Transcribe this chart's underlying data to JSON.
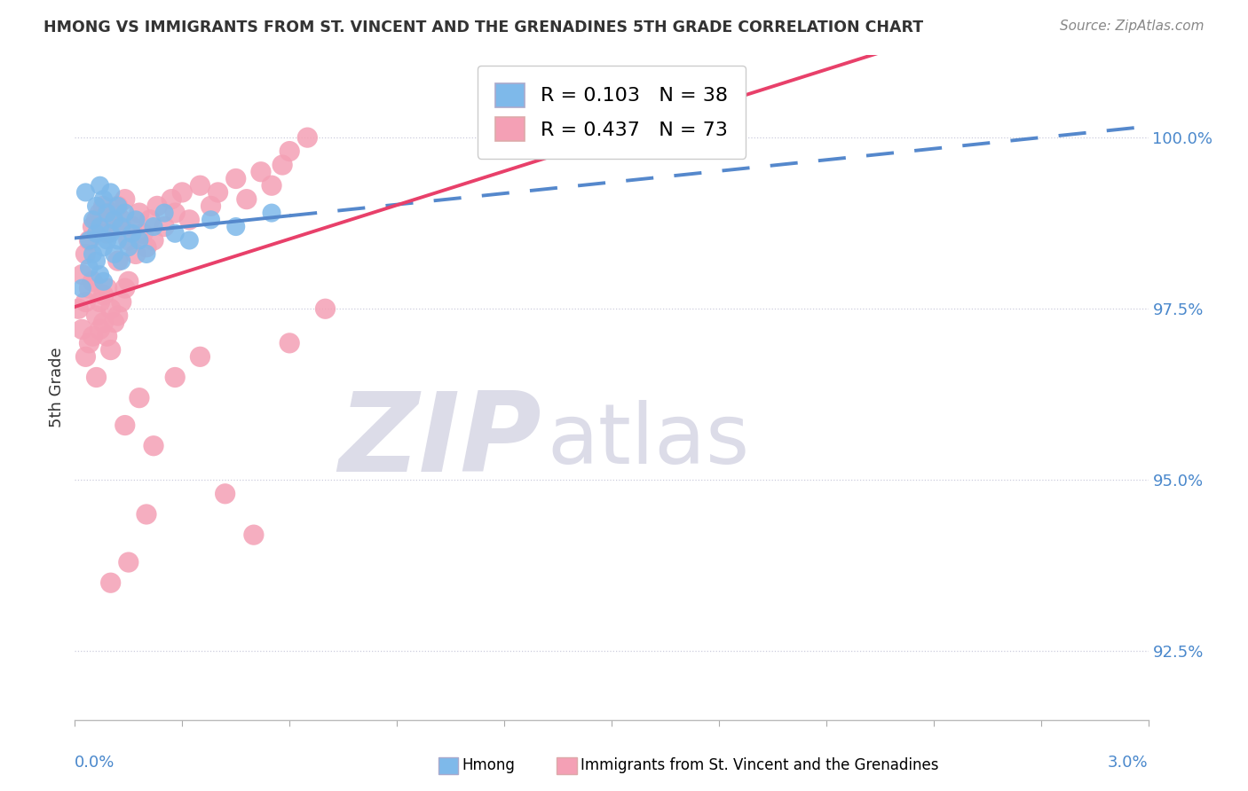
{
  "title": "HMONG VS IMMIGRANTS FROM ST. VINCENT AND THE GRENADINES 5TH GRADE CORRELATION CHART",
  "source": "Source: ZipAtlas.com",
  "xmin": 0.0,
  "xmax": 3.0,
  "ymin": 91.5,
  "ymax": 101.2,
  "yticks": [
    92.5,
    95.0,
    97.5,
    100.0
  ],
  "ytick_labels": [
    "92.5%",
    "95.0%",
    "97.5%",
    "100.0%"
  ],
  "blue_R": 0.103,
  "blue_N": 38,
  "pink_R": 0.437,
  "pink_N": 73,
  "blue_color": "#7EB9EA",
  "pink_color": "#F4A0B5",
  "blue_line_color": "#5588CC",
  "pink_line_color": "#E8406A",
  "ylabel": "5th Grade",
  "legend_label_blue": "Hmong",
  "legend_label_pink": "Immigrants from St. Vincent and the Grenadines",
  "blue_x": [
    0.02,
    0.03,
    0.04,
    0.04,
    0.05,
    0.05,
    0.06,
    0.06,
    0.06,
    0.07,
    0.07,
    0.07,
    0.08,
    0.08,
    0.08,
    0.09,
    0.09,
    0.1,
    0.1,
    0.11,
    0.11,
    0.12,
    0.12,
    0.13,
    0.13,
    0.14,
    0.15,
    0.16,
    0.17,
    0.18,
    0.2,
    0.22,
    0.25,
    0.28,
    0.32,
    0.38,
    0.45,
    0.55
  ],
  "blue_y": [
    97.8,
    99.2,
    98.5,
    98.1,
    98.8,
    98.3,
    99.0,
    98.6,
    98.2,
    99.3,
    98.7,
    98.0,
    99.1,
    98.4,
    97.9,
    98.9,
    98.5,
    99.2,
    98.6,
    98.8,
    98.3,
    99.0,
    98.5,
    98.7,
    98.2,
    98.9,
    98.4,
    98.6,
    98.8,
    98.5,
    98.3,
    98.7,
    98.9,
    98.6,
    98.5,
    98.8,
    98.7,
    98.9
  ],
  "pink_x": [
    0.01,
    0.02,
    0.02,
    0.03,
    0.03,
    0.03,
    0.04,
    0.04,
    0.04,
    0.05,
    0.05,
    0.05,
    0.06,
    0.06,
    0.06,
    0.07,
    0.07,
    0.07,
    0.08,
    0.08,
    0.08,
    0.09,
    0.09,
    0.09,
    0.1,
    0.1,
    0.1,
    0.11,
    0.11,
    0.12,
    0.12,
    0.12,
    0.13,
    0.13,
    0.14,
    0.14,
    0.15,
    0.15,
    0.16,
    0.17,
    0.18,
    0.19,
    0.2,
    0.21,
    0.22,
    0.23,
    0.25,
    0.27,
    0.28,
    0.3,
    0.32,
    0.35,
    0.38,
    0.4,
    0.45,
    0.48,
    0.52,
    0.55,
    0.58,
    0.6,
    0.65,
    0.14,
    0.18,
    0.22,
    0.28,
    0.35,
    0.42,
    0.5,
    0.6,
    0.7,
    0.1,
    0.15,
    0.2
  ],
  "pink_y": [
    97.5,
    98.0,
    97.2,
    98.3,
    97.6,
    96.8,
    98.5,
    97.8,
    97.0,
    98.7,
    97.9,
    97.1,
    98.8,
    97.4,
    96.5,
    98.9,
    97.6,
    97.2,
    99.0,
    97.7,
    97.3,
    98.6,
    97.8,
    97.1,
    98.9,
    97.5,
    96.9,
    98.7,
    97.3,
    99.0,
    98.2,
    97.4,
    98.8,
    97.6,
    99.1,
    97.8,
    98.5,
    97.9,
    98.7,
    98.3,
    98.9,
    98.6,
    98.4,
    98.8,
    98.5,
    99.0,
    98.7,
    99.1,
    98.9,
    99.2,
    98.8,
    99.3,
    99.0,
    99.2,
    99.4,
    99.1,
    99.5,
    99.3,
    99.6,
    99.8,
    100.0,
    95.8,
    96.2,
    95.5,
    96.5,
    96.8,
    94.8,
    94.2,
    97.0,
    97.5,
    93.5,
    93.8,
    94.5
  ]
}
